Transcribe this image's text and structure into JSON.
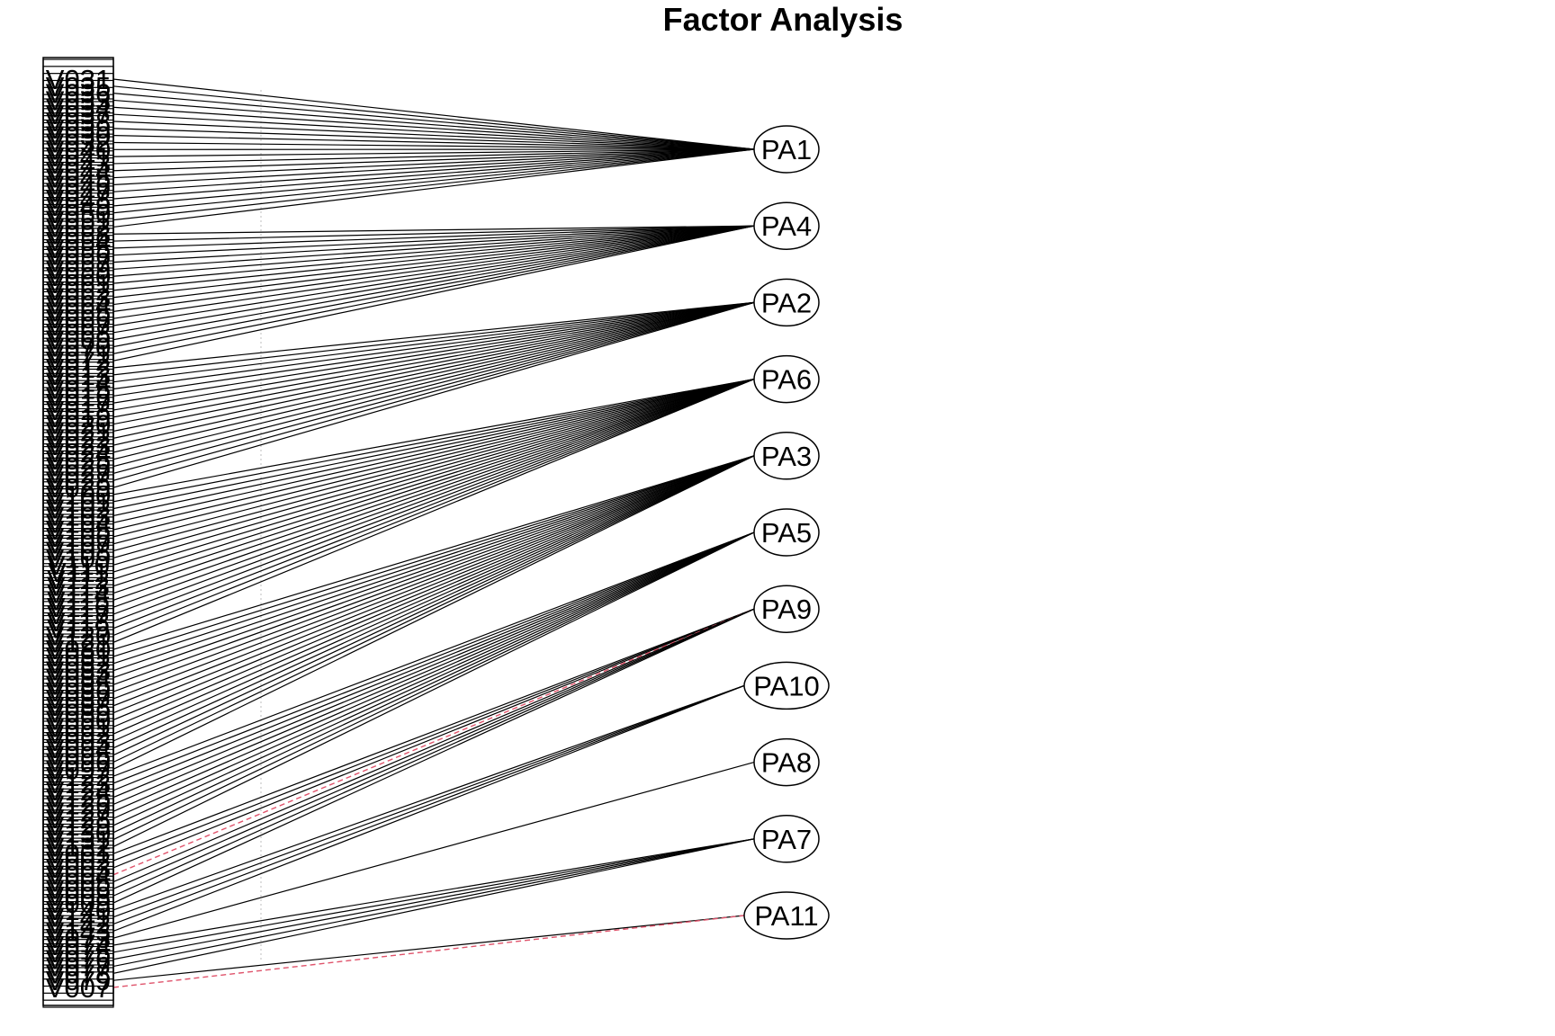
{
  "title": "Factor Analysis",
  "colors": {
    "loading_positive": "#000000",
    "loading_negative": "#DF536B",
    "guide": "#bdbdbd"
  },
  "factors": [
    "PA1",
    "PA4",
    "PA2",
    "PA6",
    "PA3",
    "PA5",
    "PA9",
    "PA10",
    "PA8",
    "PA7",
    "PA11"
  ],
  "variables": [
    "V031",
    "V035",
    "V036",
    "V033",
    "V034",
    "V037",
    "V038",
    "V039",
    "V030",
    "V032",
    "V040",
    "V041",
    "V043",
    "V044",
    "V045",
    "V046",
    "V047",
    "V048",
    "V049",
    "V050",
    "V051",
    "V052",
    "V058",
    "V054",
    "V055",
    "V056",
    "V057",
    "V059",
    "V060",
    "V061",
    "V062",
    "V063",
    "V064",
    "V065",
    "V066",
    "V067",
    "V068",
    "V069",
    "V070",
    "V071",
    "V072",
    "V012",
    "V013",
    "V014",
    "V015",
    "V016",
    "V017",
    "V018",
    "V019",
    "V020",
    "V021",
    "V022",
    "V023",
    "V024",
    "V025",
    "V026",
    "V027",
    "V028",
    "V029",
    "V100",
    "V101",
    "V102",
    "V103",
    "V104",
    "V105",
    "V106",
    "V107",
    "V108",
    "V109",
    "V110",
    "V111",
    "V112",
    "V113",
    "V114",
    "V115",
    "V116",
    "V117",
    "V118",
    "V119",
    "V120",
    "V121",
    "V080",
    "V081",
    "V082",
    "V083",
    "V084",
    "V085",
    "V086",
    "V087",
    "V088",
    "V089",
    "V090",
    "V091",
    "V092",
    "V093",
    "V094",
    "V095",
    "V096",
    "V097",
    "V122",
    "V123",
    "V124",
    "V125",
    "V126",
    "V127",
    "V128",
    "V129",
    "V130",
    "V131",
    "V132",
    "V001",
    "V002",
    "V003",
    "V004",
    "V005",
    "V006",
    "V008",
    "V009",
    "V140",
    "V141",
    "V142",
    "V143",
    "V073",
    "V074",
    "V075",
    "V076",
    "V077",
    "V078",
    "V079",
    "V007"
  ],
  "groups": [
    {
      "factor": "PA1",
      "count": 22,
      "negative": []
    },
    {
      "factor": "PA4",
      "count": 19,
      "negative": []
    },
    {
      "factor": "PA2",
      "count": 18,
      "negative": []
    },
    {
      "factor": "PA6",
      "count": 22,
      "negative": []
    },
    {
      "factor": "PA3",
      "count": 18,
      "negative": []
    },
    {
      "factor": "PA5",
      "count": 11,
      "negative": []
    },
    {
      "factor": "PA9",
      "count": 8,
      "negative": [
        3
      ]
    },
    {
      "factor": "PA10",
      "count": 4,
      "negative": []
    },
    {
      "factor": "PA8",
      "count": 1,
      "negative": []
    },
    {
      "factor": "PA7",
      "count": 5,
      "negative": []
    },
    {
      "factor": "PA11",
      "count": 2,
      "negative": [
        1
      ]
    }
  ]
}
